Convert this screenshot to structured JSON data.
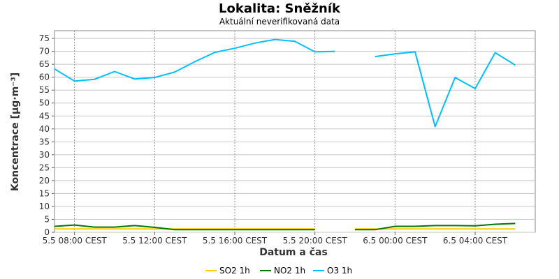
{
  "chart_data": {
    "type": "line",
    "title": "Lokalita: Sněžník",
    "subtitle": "Aktuální neverifikovaná data",
    "xlabel": "Datum a čas",
    "ylabel": "Koncentrace [µg·m⁻³]",
    "ylim": [
      0,
      78
    ],
    "yticks": [
      0,
      5,
      10,
      15,
      20,
      25,
      30,
      35,
      40,
      45,
      50,
      55,
      60,
      65,
      70,
      75
    ],
    "xlim": [
      "5.5 07:00",
      "6.5 07:00"
    ],
    "x": [
      "5.5 07:00",
      "5.5 08:00",
      "5.5 09:00",
      "5.5 10:00",
      "5.5 11:00",
      "5.5 12:00",
      "5.5 13:00",
      "5.5 14:00",
      "5.5 15:00",
      "5.5 16:00",
      "5.5 17:00",
      "5.5 18:00",
      "5.5 19:00",
      "5.5 20:00",
      "5.5 21:00",
      "5.5 22:00",
      "5.5 23:00",
      "6.5 00:00",
      "6.5 01:00",
      "6.5 02:00",
      "6.5 03:00",
      "6.5 04:00",
      "6.5 05:00",
      "6.5 06:00"
    ],
    "xticks": [
      {
        "x": "5.5 08:00",
        "label": "5.5 08:00 CEST"
      },
      {
        "x": "5.5 12:00",
        "label": "5.5 12:00 CEST"
      },
      {
        "x": "5.5 16:00",
        "label": "5.5 16:00 CEST"
      },
      {
        "x": "5.5 20:00",
        "label": "5.5 20:00 CEST"
      },
      {
        "x": "6.5 00:00",
        "label": "6.5 00:00 CEST"
      },
      {
        "x": "6.5 04:00",
        "label": "6.5 04:00 CEST"
      }
    ],
    "grid": true,
    "legend_position": "bottom",
    "series": [
      {
        "name": "SO2 1h",
        "color": "#ffcc00",
        "values": [
          1.3,
          1.3,
          1.3,
          1.3,
          1.3,
          1.3,
          1.3,
          1.3,
          1.3,
          1.3,
          1.3,
          1.3,
          1.3,
          1.3,
          null,
          1.3,
          1.3,
          1.3,
          1.3,
          1.3,
          1.3,
          1.3,
          1.3,
          1.3
        ]
      },
      {
        "name": "NO2 1h",
        "color": "#007700",
        "values": [
          2.3,
          2.8,
          2.0,
          2.0,
          2.6,
          1.9,
          1.0,
          1.0,
          1.0,
          1.0,
          1.0,
          1.0,
          1.0,
          1.0,
          null,
          1.0,
          1.0,
          2.3,
          2.3,
          2.6,
          2.6,
          2.5,
          3.1,
          3.4
        ]
      },
      {
        "name": "O3 1h",
        "color": "#00bfff",
        "values": [
          63.2,
          58.5,
          59.2,
          62.2,
          59.3,
          59.9,
          62.0,
          66.0,
          69.6,
          71.2,
          73.2,
          74.6,
          73.9,
          69.8,
          70.0,
          null,
          68.0,
          69.0,
          69.8,
          40.9,
          59.9,
          55.6,
          69.5,
          64.7
        ]
      }
    ]
  }
}
